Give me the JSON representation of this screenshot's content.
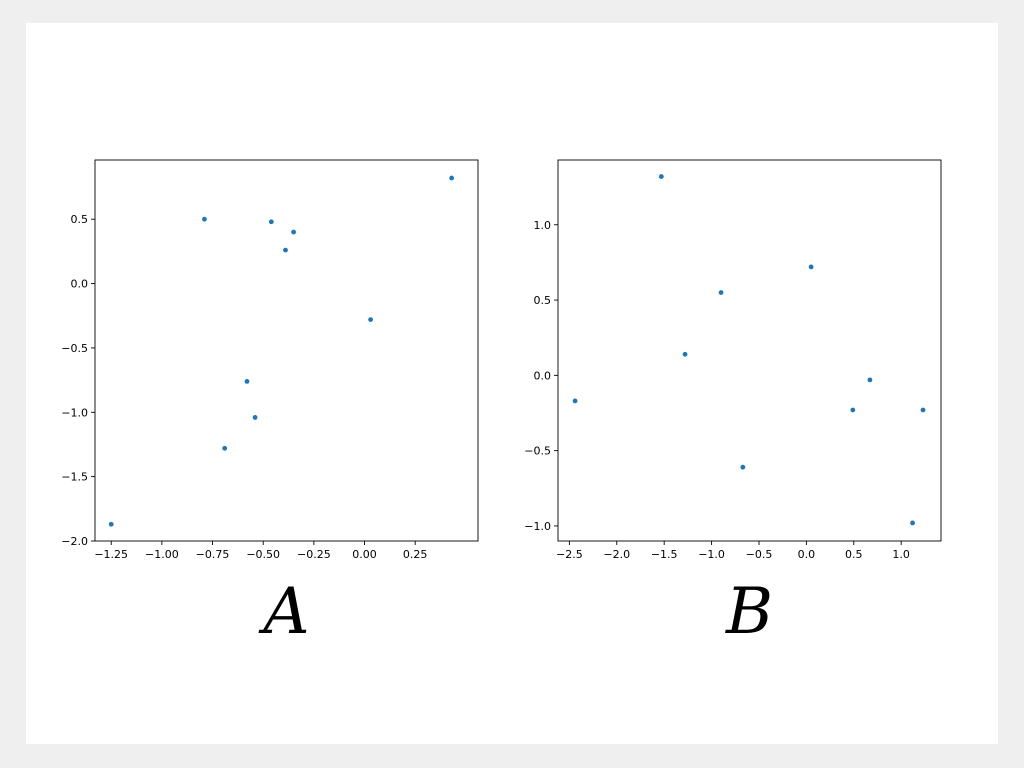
{
  "chart_data": [
    {
      "type": "scatter",
      "title": "",
      "panel_label": "A",
      "xlabel": "",
      "ylabel": "",
      "xlim": [
        -1.33,
        0.56
      ],
      "ylim": [
        -2.0,
        0.96
      ],
      "xticks": [
        -1.25,
        -1.0,
        -0.75,
        -0.5,
        -0.25,
        0.0,
        0.25
      ],
      "xtick_labels": [
        "−1.25",
        "−1.00",
        "−0.75",
        "−0.50",
        "−0.25",
        "0.00",
        "0.25"
      ],
      "yticks": [
        -2.0,
        -1.5,
        -1.0,
        -0.5,
        0.0,
        0.5
      ],
      "ytick_labels": [
        "−2.0",
        "−1.5",
        "−1.0",
        "−0.5",
        "0.0",
        "0.5"
      ],
      "grid": false,
      "color": "#1f77b4",
      "points": [
        {
          "x": -1.25,
          "y": -1.87
        },
        {
          "x": -0.79,
          "y": 0.5
        },
        {
          "x": -0.69,
          "y": -1.28
        },
        {
          "x": -0.58,
          "y": -0.76
        },
        {
          "x": -0.54,
          "y": -1.04
        },
        {
          "x": -0.46,
          "y": 0.48
        },
        {
          "x": -0.39,
          "y": 0.26
        },
        {
          "x": -0.35,
          "y": 0.4
        },
        {
          "x": 0.03,
          "y": -0.28
        },
        {
          "x": 0.43,
          "y": 0.82
        }
      ]
    },
    {
      "type": "scatter",
      "title": "",
      "panel_label": "B",
      "xlabel": "",
      "ylabel": "",
      "xlim": [
        -2.62,
        1.42
      ],
      "ylim": [
        -1.1,
        1.43
      ],
      "xticks": [
        -2.5,
        -2.0,
        -1.5,
        -1.0,
        -0.5,
        0.0,
        0.5,
        1.0
      ],
      "xtick_labels": [
        "−2.5",
        "−2.0",
        "−1.5",
        "−1.0",
        "−0.5",
        "0.0",
        "0.5",
        "1.0"
      ],
      "yticks": [
        -1.0,
        -0.5,
        0.0,
        0.5,
        1.0
      ],
      "ytick_labels": [
        "−1.0",
        "−0.5",
        "0.0",
        "0.5",
        "1.0"
      ],
      "grid": false,
      "color": "#1f77b4",
      "points": [
        {
          "x": -2.44,
          "y": -0.17
        },
        {
          "x": -1.53,
          "y": 1.32
        },
        {
          "x": -1.28,
          "y": 0.14
        },
        {
          "x": -0.9,
          "y": 0.55
        },
        {
          "x": -0.67,
          "y": -0.61
        },
        {
          "x": 0.05,
          "y": 0.72
        },
        {
          "x": 0.49,
          "y": -0.23
        },
        {
          "x": 0.67,
          "y": -0.03
        },
        {
          "x": 1.12,
          "y": -0.98
        },
        {
          "x": 1.23,
          "y": -0.23
        }
      ]
    }
  ]
}
